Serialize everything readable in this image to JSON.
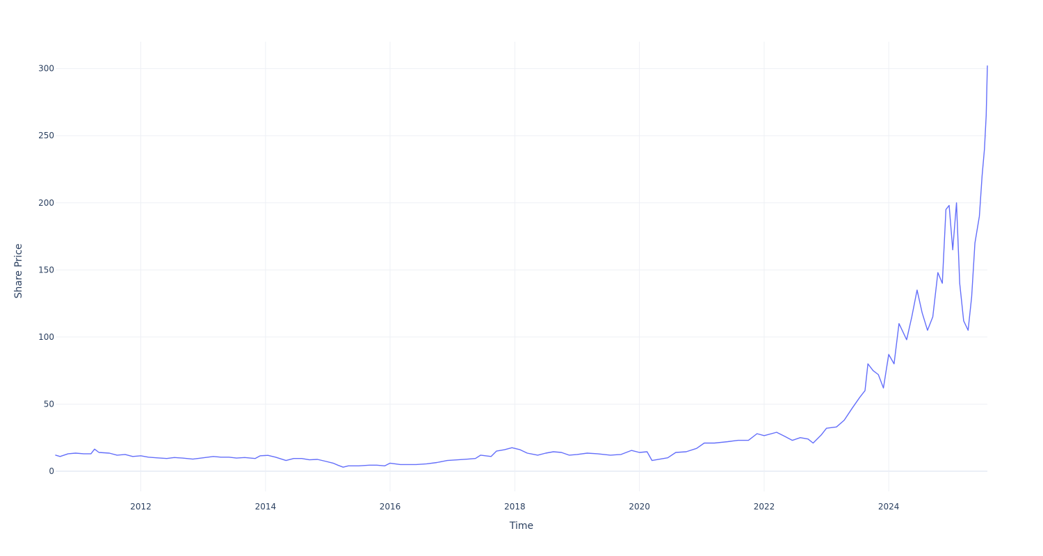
{
  "chart_data": {
    "type": "line",
    "title": "",
    "xlabel": "Time",
    "ylabel": "Share Price",
    "x_range": [
      "2010-08-20",
      "2025-08-01"
    ],
    "ylim": [
      -15,
      320
    ],
    "x_ticks": [
      {
        "date": "2012-01-01",
        "label": "2012"
      },
      {
        "date": "2014-01-01",
        "label": "2014"
      },
      {
        "date": "2016-01-01",
        "label": "2016"
      },
      {
        "date": "2018-01-01",
        "label": "2018"
      },
      {
        "date": "2020-01-01",
        "label": "2020"
      },
      {
        "date": "2022-01-01",
        "label": "2022"
      },
      {
        "date": "2024-01-01",
        "label": "2024"
      }
    ],
    "y_ticks": [
      {
        "value": 0,
        "label": "0"
      },
      {
        "value": 50,
        "label": "50"
      },
      {
        "value": 100,
        "label": "100"
      },
      {
        "value": 150,
        "label": "150"
      },
      {
        "value": 200,
        "label": "200"
      },
      {
        "value": 250,
        "label": "250"
      },
      {
        "value": 300,
        "label": "300"
      }
    ],
    "grid": true,
    "legend": "none",
    "series": [
      {
        "color": "#636efa",
        "points": [
          [
            "2010-08-20",
            12
          ],
          [
            "2010-09-15",
            11
          ],
          [
            "2010-11-01",
            13
          ],
          [
            "2010-12-15",
            13.5
          ],
          [
            "2011-02-01",
            13
          ],
          [
            "2011-03-15",
            13
          ],
          [
            "2011-04-05",
            16.5
          ],
          [
            "2011-05-01",
            14
          ],
          [
            "2011-07-01",
            13.5
          ],
          [
            "2011-08-15",
            12
          ],
          [
            "2011-10-01",
            12.5
          ],
          [
            "2011-11-15",
            11
          ],
          [
            "2012-01-01",
            11.5
          ],
          [
            "2012-02-15",
            10.5
          ],
          [
            "2012-04-01",
            10
          ],
          [
            "2012-06-01",
            9.5
          ],
          [
            "2012-07-15",
            10.2
          ],
          [
            "2012-09-01",
            9.8
          ],
          [
            "2012-11-01",
            9
          ],
          [
            "2013-01-01",
            10
          ],
          [
            "2013-03-01",
            11
          ],
          [
            "2013-04-15",
            10.5
          ],
          [
            "2013-06-01",
            10.5
          ],
          [
            "2013-07-15",
            9.8
          ],
          [
            "2013-09-01",
            10.2
          ],
          [
            "2013-11-01",
            9.5
          ],
          [
            "2013-12-01",
            11.5
          ],
          [
            "2014-01-15",
            11.8
          ],
          [
            "2014-03-01",
            10.5
          ],
          [
            "2014-05-01",
            8
          ],
          [
            "2014-06-15",
            9.5
          ],
          [
            "2014-08-01",
            9.5
          ],
          [
            "2014-09-15",
            8.5
          ],
          [
            "2014-11-01",
            8.8
          ],
          [
            "2014-12-15",
            7.5
          ],
          [
            "2015-02-01",
            6
          ],
          [
            "2015-03-01",
            4.5
          ],
          [
            "2015-04-01",
            3
          ],
          [
            "2015-05-01",
            4
          ],
          [
            "2015-07-01",
            4
          ],
          [
            "2015-09-01",
            4.5
          ],
          [
            "2015-10-15",
            4.5
          ],
          [
            "2015-12-01",
            4
          ],
          [
            "2016-01-01",
            6
          ],
          [
            "2016-03-01",
            5
          ],
          [
            "2016-06-01",
            5
          ],
          [
            "2016-08-01",
            5.5
          ],
          [
            "2016-10-01",
            6.5
          ],
          [
            "2016-12-01",
            8
          ],
          [
            "2017-02-01",
            8.5
          ],
          [
            "2017-04-01",
            9
          ],
          [
            "2017-05-15",
            9.5
          ],
          [
            "2017-06-15",
            12
          ],
          [
            "2017-08-15",
            11
          ],
          [
            "2017-09-15",
            15
          ],
          [
            "2017-11-01",
            16
          ],
          [
            "2017-12-15",
            17.5
          ],
          [
            "2018-02-01",
            16
          ],
          [
            "2018-03-15",
            13.5
          ],
          [
            "2018-05-15",
            12
          ],
          [
            "2018-07-01",
            13.5
          ],
          [
            "2018-08-15",
            14.5
          ],
          [
            "2018-10-01",
            14
          ],
          [
            "2018-11-15",
            12
          ],
          [
            "2019-01-01",
            12.5
          ],
          [
            "2019-03-01",
            13.5
          ],
          [
            "2019-05-01",
            13
          ],
          [
            "2019-07-15",
            12
          ],
          [
            "2019-09-15",
            12.5
          ],
          [
            "2019-11-15",
            15.5
          ],
          [
            "2020-01-01",
            14
          ],
          [
            "2020-02-15",
            14.5
          ],
          [
            "2020-03-15",
            8
          ],
          [
            "2020-05-01",
            9
          ],
          [
            "2020-06-15",
            10
          ],
          [
            "2020-08-01",
            14
          ],
          [
            "2020-10-01",
            14.5
          ],
          [
            "2020-12-01",
            17
          ],
          [
            "2021-01-15",
            21
          ],
          [
            "2021-03-15",
            21
          ],
          [
            "2021-06-01",
            22
          ],
          [
            "2021-08-01",
            23
          ],
          [
            "2021-10-01",
            23
          ],
          [
            "2021-11-20",
            28
          ],
          [
            "2022-01-01",
            26.5
          ],
          [
            "2022-03-15",
            29
          ],
          [
            "2022-05-01",
            26
          ],
          [
            "2022-06-15",
            23
          ],
          [
            "2022-08-01",
            25
          ],
          [
            "2022-09-15",
            24
          ],
          [
            "2022-10-15",
            21
          ],
          [
            "2022-12-01",
            27
          ],
          [
            "2023-01-01",
            32
          ],
          [
            "2023-03-01",
            33
          ],
          [
            "2023-04-15",
            38
          ],
          [
            "2023-06-01",
            47
          ],
          [
            "2023-07-15",
            55
          ],
          [
            "2023-08-15",
            60
          ],
          [
            "2023-09-01",
            80
          ],
          [
            "2023-10-01",
            75
          ],
          [
            "2023-11-01",
            72
          ],
          [
            "2023-12-01",
            62
          ],
          [
            "2024-01-01",
            87
          ],
          [
            "2024-02-01",
            80
          ],
          [
            "2024-03-01",
            110
          ],
          [
            "2024-04-15",
            98
          ],
          [
            "2024-05-15",
            115
          ],
          [
            "2024-06-15",
            135
          ],
          [
            "2024-07-15",
            118
          ],
          [
            "2024-08-15",
            105
          ],
          [
            "2024-09-15",
            115
          ],
          [
            "2024-10-15",
            148
          ],
          [
            "2024-11-10",
            140
          ],
          [
            "2024-12-01",
            195
          ],
          [
            "2024-12-20",
            198
          ],
          [
            "2025-01-10",
            165
          ],
          [
            "2025-02-01",
            200
          ],
          [
            "2025-02-20",
            140
          ],
          [
            "2025-03-15",
            112
          ],
          [
            "2025-04-10",
            105
          ],
          [
            "2025-05-01",
            130
          ],
          [
            "2025-05-20",
            170
          ],
          [
            "2025-06-15",
            190
          ],
          [
            "2025-07-01",
            220
          ],
          [
            "2025-07-15",
            240
          ],
          [
            "2025-07-25",
            265
          ],
          [
            "2025-08-01",
            302
          ]
        ]
      }
    ]
  }
}
